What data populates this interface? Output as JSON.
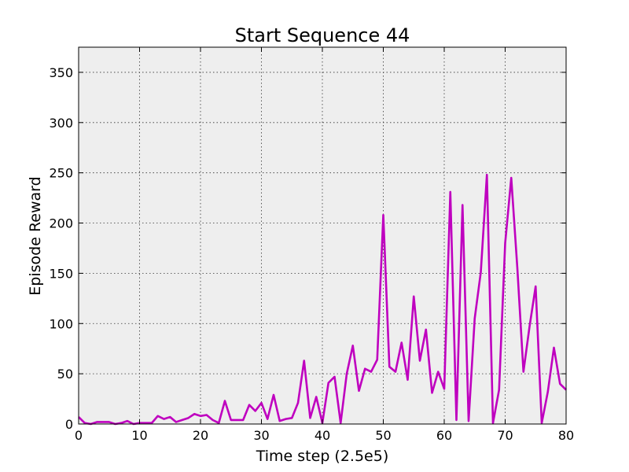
{
  "chart_data": {
    "type": "line",
    "title": "Start Sequence 44",
    "xlabel": "Time step (2.5e5)",
    "ylabel": "Episode Reward",
    "xlim": [
      0,
      80
    ],
    "ylim": [
      0,
      375
    ],
    "xticks": [
      0,
      10,
      20,
      30,
      40,
      50,
      60,
      70,
      80
    ],
    "yticks": [
      0,
      50,
      100,
      150,
      200,
      250,
      300,
      350
    ],
    "grid": true,
    "background_color": "#eeeeee",
    "series": [
      {
        "color": "#bf00bf",
        "x": [
          0,
          1,
          2,
          3,
          4,
          5,
          6,
          7,
          8,
          9,
          10,
          11,
          12,
          13,
          14,
          15,
          16,
          17,
          18,
          19,
          20,
          21,
          22,
          23,
          24,
          25,
          26,
          27,
          28,
          29,
          30,
          31,
          32,
          33,
          34,
          35,
          36,
          37,
          38,
          39,
          40,
          41,
          42,
          43,
          44,
          45,
          46,
          47,
          48,
          49,
          50,
          51,
          52,
          53,
          54,
          55,
          56,
          57,
          58,
          59,
          60,
          61,
          62,
          63,
          64,
          65,
          66,
          67,
          68,
          69,
          70,
          71,
          72,
          73,
          74,
          75,
          76,
          77,
          78,
          79,
          80
        ],
        "y": [
          7,
          1,
          0,
          2,
          2,
          2,
          0,
          1,
          3,
          0,
          1,
          1,
          1,
          8,
          5,
          7,
          2,
          4,
          6,
          10,
          8,
          9,
          4,
          1,
          23,
          4,
          4,
          4,
          19,
          13,
          21,
          5,
          29,
          3,
          5,
          6,
          21,
          63,
          6,
          27,
          1,
          41,
          47,
          1,
          50,
          78,
          33,
          55,
          52,
          64,
          208,
          57,
          52,
          81,
          44,
          127,
          63,
          94,
          31,
          52,
          35,
          231,
          4,
          218,
          3,
          105,
          151,
          248,
          1,
          34,
          180,
          245,
          155,
          52,
          97,
          137,
          1,
          32,
          76,
          40,
          34
        ]
      }
    ]
  }
}
